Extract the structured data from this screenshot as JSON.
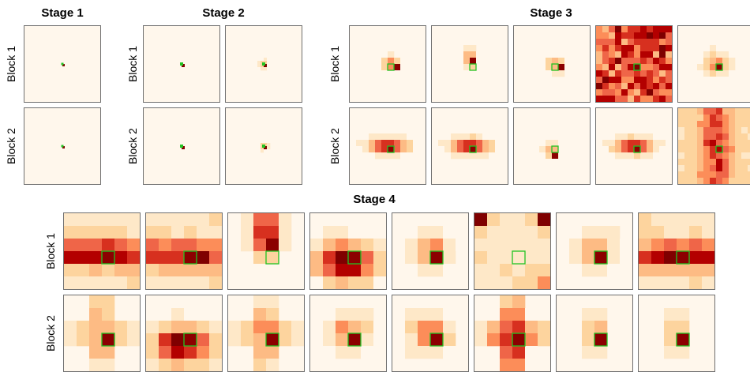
{
  "chart_data": {
    "type": "heatmap",
    "title": "",
    "colormap": [
      "#fff7ec",
      "#fee8c8",
      "#fdd49e",
      "#fdbb84",
      "#fc8d59",
      "#ef6548",
      "#d7301f",
      "#b30000",
      "#7f0000"
    ],
    "query_marker_color": "#22c322",
    "stages": [
      {
        "title": "Stage 1",
        "rows": [
          "Block 1",
          "Block 2"
        ],
        "columns": 1
      },
      {
        "title": "Stage 2",
        "rows": [
          "Block 1",
          "Block 2"
        ],
        "columns": 2
      },
      {
        "title": "Stage 3",
        "rows": [
          "Block 1",
          "Block 2"
        ],
        "columns": 5
      },
      {
        "title": "Stage 4",
        "rows": [
          "Block 1",
          "Block 2"
        ],
        "columns": 8
      }
    ],
    "heads": [
      {
        "stage": 1,
        "block": 1,
        "head": 1,
        "pattern": "point"
      },
      {
        "stage": 1,
        "block": 2,
        "head": 1,
        "pattern": "point"
      },
      {
        "stage": 2,
        "block": 1,
        "head": 1,
        "pattern": "point"
      },
      {
        "stage": 2,
        "block": 1,
        "head": 2,
        "pattern": "point-halo"
      },
      {
        "stage": 2,
        "block": 2,
        "head": 1,
        "pattern": "point"
      },
      {
        "stage": 2,
        "block": 2,
        "head": 2,
        "pattern": "point-halo"
      },
      {
        "stage": 3,
        "block": 1,
        "head": 1,
        "pattern": "local-right"
      },
      {
        "stage": 3,
        "block": 1,
        "head": 2,
        "pattern": "local-up"
      },
      {
        "stage": 3,
        "block": 1,
        "head": 3,
        "pattern": "local-right"
      },
      {
        "stage": 3,
        "block": 1,
        "head": 4,
        "pattern": "global"
      },
      {
        "stage": 3,
        "block": 1,
        "head": 5,
        "pattern": "local-blob"
      },
      {
        "stage": 3,
        "block": 2,
        "head": 1,
        "pattern": "horizontal-spread"
      },
      {
        "stage": 3,
        "block": 2,
        "head": 2,
        "pattern": "horizontal-spread"
      },
      {
        "stage": 3,
        "block": 2,
        "head": 3,
        "pattern": "local-down"
      },
      {
        "stage": 3,
        "block": 2,
        "head": 4,
        "pattern": "horizontal-spread"
      },
      {
        "stage": 3,
        "block": 2,
        "head": 5,
        "pattern": "vertical-band"
      },
      {
        "stage": 4,
        "block": 1,
        "head": 1,
        "pattern": "horizontal-band"
      },
      {
        "stage": 4,
        "block": 1,
        "head": 2,
        "pattern": "horizontal-band"
      },
      {
        "stage": 4,
        "block": 1,
        "head": 3,
        "pattern": "vertical-up"
      },
      {
        "stage": 4,
        "block": 1,
        "head": 4,
        "pattern": "lower-blob"
      },
      {
        "stage": 4,
        "block": 1,
        "head": 5,
        "pattern": "center-blob"
      },
      {
        "stage": 4,
        "block": 1,
        "head": 6,
        "pattern": "corners"
      },
      {
        "stage": 4,
        "block": 1,
        "head": 7,
        "pattern": "center-blob"
      },
      {
        "stage": 4,
        "block": 1,
        "head": 8,
        "pattern": "horizontal-band"
      },
      {
        "stage": 4,
        "block": 2,
        "head": 1,
        "pattern": "cross"
      },
      {
        "stage": 4,
        "block": 2,
        "head": 2,
        "pattern": "lower-blob"
      },
      {
        "stage": 4,
        "block": 2,
        "head": 3,
        "pattern": "cross"
      },
      {
        "stage": 4,
        "block": 2,
        "head": 4,
        "pattern": "center-blob"
      },
      {
        "stage": 4,
        "block": 2,
        "head": 5,
        "pattern": "center-blob"
      },
      {
        "stage": 4,
        "block": 2,
        "head": 6,
        "pattern": "cross-strong"
      },
      {
        "stage": 4,
        "block": 2,
        "head": 7,
        "pattern": "vertical-local"
      },
      {
        "stage": 4,
        "block": 2,
        "head": 8,
        "pattern": "vertical-local"
      }
    ]
  }
}
